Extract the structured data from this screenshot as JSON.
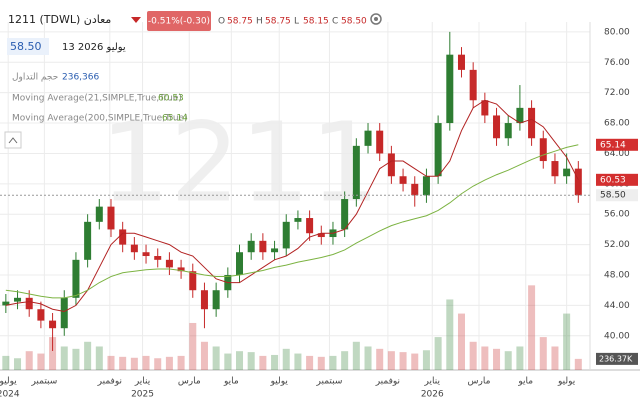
{
  "header": {
    "symbol": "1211 (TDWL) معادن",
    "change": "-0.51%(-0.30)",
    "ohlc": [
      {
        "key": "O",
        "value": "58.75"
      },
      {
        "key": "H",
        "value": "58.75"
      },
      {
        "key": "L",
        "value": "58.15"
      },
      {
        "key": "C",
        "value": "58.50"
      }
    ],
    "price": "58.50",
    "date": "13 2026 يوليو",
    "watermark": "1211"
  },
  "chart_data": {
    "type": "candlestick",
    "xlim": [
      -0.5,
      50
    ],
    "ylim": [
      35.5,
      81.3
    ],
    "yticks": [
      {
        "value": 40,
        "label": "40.00"
      },
      {
        "value": 44,
        "label": "44.00"
      },
      {
        "value": 48,
        "label": "48.00"
      },
      {
        "value": 52,
        "label": "52.00"
      },
      {
        "value": 56,
        "label": "56.00"
      },
      {
        "value": 60,
        "label": "60.00"
      },
      {
        "value": 64,
        "label": "64.00"
      },
      {
        "value": 68,
        "label": "68.00"
      },
      {
        "value": 72,
        "label": "72.00"
      },
      {
        "value": 76,
        "label": "76.00"
      },
      {
        "value": 80,
        "label": "80.00"
      }
    ],
    "xticks": [
      {
        "value": 0.2,
        "label": "يوليو"
      },
      {
        "value": 3.3,
        "label": "سبتمبر"
      },
      {
        "value": 8.9,
        "label": "نوفمبر"
      },
      {
        "value": 11.7,
        "label": "يناير"
      },
      {
        "value": 15.7,
        "label": "مارس"
      },
      {
        "value": 19.3,
        "label": "مايو"
      },
      {
        "value": 23.4,
        "label": "يوليو"
      },
      {
        "value": 27.7,
        "label": "سبتمبر"
      },
      {
        "value": 32.7,
        "label": "نوفمبر"
      },
      {
        "value": 36.5,
        "label": "يناير"
      },
      {
        "value": 40.5,
        "label": "مارس"
      },
      {
        "value": 44.5,
        "label": "مايو"
      },
      {
        "value": 48,
        "label": "يوليو"
      }
    ],
    "year_ticks": [
      {
        "value": 0.2,
        "label": "2024"
      },
      {
        "value": 11.7,
        "label": "2025"
      },
      {
        "value": 36.5,
        "label": "2026"
      }
    ],
    "grid": true,
    "up_color": "#2e7d32",
    "down_color": "#c62828",
    "open": [
      44,
      44.5,
      45,
      43.5,
      42,
      41,
      45,
      50,
      55,
      57,
      54,
      52,
      51,
      50.5,
      50,
      49,
      48.5,
      46,
      43.5,
      46,
      48,
      51,
      52.5,
      51,
      51.5,
      55,
      55.5,
      53.5,
      53,
      54,
      58,
      65,
      67,
      64,
      61,
      60,
      58.5,
      61,
      68,
      77,
      75,
      71,
      69,
      66,
      68,
      70,
      66,
      63,
      61,
      62
    ],
    "high": [
      45.5,
      46,
      46,
      44.5,
      43,
      46,
      51,
      56,
      58,
      58,
      55,
      53,
      52,
      51.5,
      51,
      50,
      49.5,
      47,
      47,
      49,
      52,
      53.5,
      53.5,
      52.5,
      56,
      56.5,
      56.5,
      54.5,
      55,
      59,
      66,
      68,
      68,
      65,
      62,
      61,
      62,
      69,
      80,
      78,
      76,
      72,
      70,
      69,
      73,
      71,
      67,
      64,
      64,
      63
    ],
    "low": [
      43,
      43.5,
      42.5,
      41,
      38,
      40,
      44,
      49,
      54,
      53,
      51,
      50,
      49.5,
      49,
      48,
      47.5,
      45,
      41,
      42.5,
      45,
      47,
      50,
      50,
      50,
      50.5,
      54,
      52.5,
      52,
      52,
      53,
      57,
      64,
      63,
      60,
      59,
      57,
      57.5,
      60,
      67,
      74,
      70,
      68,
      65,
      65,
      67,
      65,
      62,
      60,
      60,
      57.5
    ],
    "close": [
      44.5,
      45,
      43.5,
      42,
      41,
      45,
      50,
      55,
      57,
      54,
      52,
      51,
      50.5,
      50,
      49,
      48.5,
      46,
      43.5,
      46,
      48,
      51,
      52.5,
      51,
      51.5,
      55,
      55.5,
      53.5,
      53,
      54,
      58,
      65,
      67,
      64,
      61,
      60,
      58.5,
      61,
      68,
      77,
      75,
      71,
      69,
      66,
      68,
      70,
      66,
      63,
      61,
      62,
      58.5
    ],
    "close_label": "58.50",
    "series": [
      {
        "name": "Moving Average(21,SIMPLE,True,True)",
        "color": "#b22222",
        "values": [
          44,
          44.3,
          44.5,
          44.2,
          43.5,
          43.2,
          44,
          46,
          49,
          52,
          53.5,
          53.5,
          53,
          52.5,
          52,
          51,
          50.5,
          49,
          47.5,
          47,
          47,
          48,
          49,
          50,
          50.5,
          51.5,
          53,
          53.5,
          53.5,
          54,
          56,
          59,
          62,
          63,
          63,
          62,
          61,
          61,
          63,
          67,
          70,
          71,
          70.5,
          69,
          68,
          68.5,
          67.5,
          65.5,
          63.5,
          60.53
        ]
      },
      {
        "name": "Moving Average(200,SIMPLE,True,True)",
        "color": "#7cb342",
        "values": [
          46,
          45.8,
          45.5,
          45.2,
          45,
          45,
          45.3,
          46,
          47,
          47.8,
          48.3,
          48.5,
          48.7,
          48.8,
          48.8,
          48.6,
          48.3,
          48,
          47.8,
          47.8,
          48,
          48.3,
          48.6,
          49,
          49.3,
          49.7,
          50,
          50.3,
          50.7,
          51.3,
          52.2,
          53,
          53.8,
          54.5,
          55,
          55.4,
          55.8,
          56.5,
          57.5,
          58.7,
          59.7,
          60.5,
          61.2,
          61.8,
          62.5,
          63.2,
          63.8,
          64.3,
          64.8,
          65.14
        ]
      }
    ],
    "volume": {
      "name": "حجم التداول",
      "legend_label": "236,366",
      "tag_label": "236.37K",
      "lim": [
        0,
        7400000
      ],
      "values": [
        300000,
        250000,
        400000,
        350000,
        700000,
        500000,
        450000,
        600000,
        500000,
        300000,
        280000,
        260000,
        300000,
        250000,
        280000,
        300000,
        1000000,
        600000,
        500000,
        350000,
        400000,
        380000,
        300000,
        320000,
        450000,
        350000,
        300000,
        280000,
        300000,
        400000,
        600000,
        500000,
        450000,
        400000,
        380000,
        350000,
        420000,
        700000,
        1500000,
        1200000,
        600000,
        500000,
        450000,
        400000,
        500000,
        1800000,
        700000,
        500000,
        1200000,
        236366
      ]
    }
  }
}
